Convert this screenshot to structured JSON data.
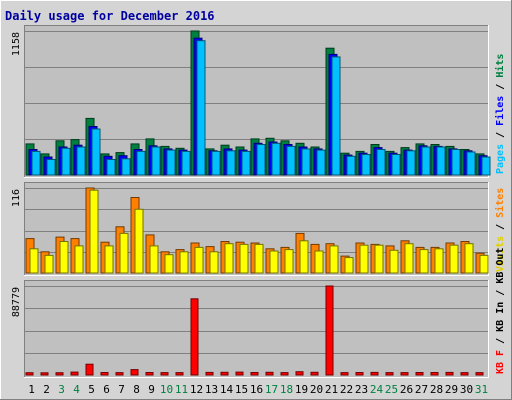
{
  "chart_data": {
    "type": "bar",
    "title": "Daily usage for December 2016",
    "categories": [
      "1",
      "2",
      "3",
      "4",
      "5",
      "6",
      "7",
      "8",
      "9",
      "10",
      "11",
      "12",
      "13",
      "14",
      "15",
      "16",
      "17",
      "18",
      "19",
      "20",
      "21",
      "22",
      "23",
      "24",
      "25",
      "26",
      "27",
      "28",
      "29",
      "30",
      "31"
    ],
    "weekend_days": [
      "3",
      "4",
      "10",
      "11",
      "17",
      "18",
      "24",
      "25",
      "31"
    ],
    "panels": [
      {
        "name": "hits-files-pages",
        "max_label": "1158",
        "ylim": [
          0,
          1158
        ],
        "grid": true,
        "legend": [
          "Pages",
          "Files",
          "Hits"
        ],
        "series": [
          {
            "name": "Hits",
            "color": "#008040",
            "values": [
              250,
              170,
              275,
              285,
              455,
              170,
              180,
              250,
              290,
              230,
              215,
              1158,
              210,
              240,
              225,
              290,
              295,
              275,
              255,
              225,
              1020,
              175,
              190,
              245,
              190,
              220,
              250,
              245,
              230,
              205,
              170
            ]
          },
          {
            "name": "Files",
            "color": "#0000ff",
            "values": [
              205,
              145,
              225,
              240,
              390,
              150,
              155,
              205,
              235,
              210,
              200,
              1100,
              195,
              210,
              200,
              255,
              265,
              245,
              225,
              210,
              970,
              160,
              175,
              220,
              175,
              200,
              235,
              230,
              210,
              195,
              155
            ]
          },
          {
            "name": "Pages",
            "color": "#00c0ff",
            "values": [
              190,
              125,
              215,
              225,
              370,
              125,
              130,
              190,
              225,
              200,
              190,
              1080,
              190,
              195,
              190,
              245,
              255,
              230,
              210,
              200,
              950,
              150,
              165,
              205,
              165,
              195,
              225,
              225,
              205,
              185,
              145
            ]
          }
        ]
      },
      {
        "name": "visits-sites",
        "max_label": "116",
        "ylim": [
          0,
          116
        ],
        "grid": true,
        "legend": [
          "Visits",
          "Sites"
        ],
        "series": [
          {
            "name": "Sites",
            "color": "#ff8000",
            "values": [
              47,
              29,
              49,
              47,
              116,
              42,
              63,
              103,
              52,
              29,
              32,
              41,
              36,
              43,
              42,
              41,
              33,
              35,
              54,
              39,
              40,
              23,
              41,
              39,
              37,
              44,
              35,
              35,
              41,
              43,
              27
            ]
          },
          {
            "name": "Visits",
            "color": "#ffff00",
            "values": [
              33,
              24,
              43,
              37,
              113,
              37,
              54,
              87,
              37,
              25,
              29,
              35,
              29,
              40,
              39,
              39,
              30,
              32,
              44,
              30,
              37,
              21,
              38,
              38,
              31,
              40,
              32,
              33,
              38,
              40,
              24
            ]
          }
        ]
      },
      {
        "name": "kbytes",
        "max_label": "88779",
        "ylim": [
          0,
          88779
        ],
        "grid": true,
        "legend": [
          "KB F",
          "KB In",
          "KB Out"
        ],
        "series": [
          {
            "name": "KB F",
            "color": "#ff0000",
            "values": [
              2300,
              2200,
              2300,
              2900,
              10800,
              2500,
              2400,
              5400,
              2500,
              2400,
              2400,
              76000,
              2600,
              2700,
              2900,
              2500,
              2700,
              2400,
              3300,
              2700,
              88779,
              2400,
              2500,
              2600,
              2400,
              2400,
              2500,
              2500,
              2600,
              2400,
              2400
            ]
          }
        ]
      }
    ]
  }
}
